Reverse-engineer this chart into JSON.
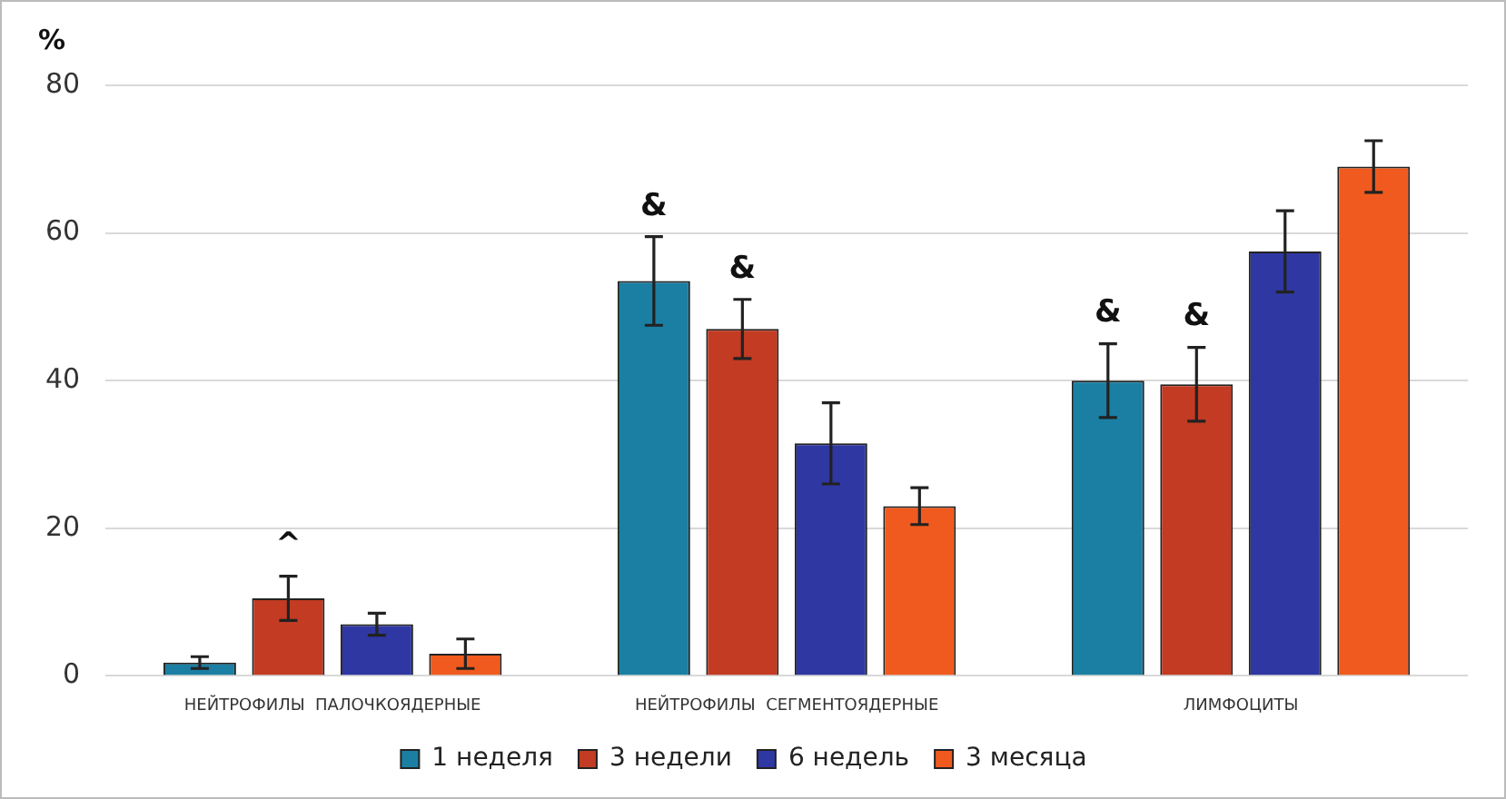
{
  "chart_data": {
    "type": "bar",
    "ylabel": "%",
    "categories": [
      "НЕЙТРОФИЛЫ  ПАЛОЧКОЯДЕРНЫЕ",
      "НЕЙТРОФИЛЫ  СЕГМЕНТОЯДЕРНЫЕ",
      "ЛИМФОЦИТЫ"
    ],
    "series": [
      {
        "name": "1 неделя",
        "color": "#1a7fa3",
        "values": [
          1.8,
          53.5,
          40
        ],
        "errors": [
          0.8,
          6,
          5
        ],
        "value_labels": [
          null,
          "&",
          "&"
        ]
      },
      {
        "name": "3 недели",
        "color": "#c23b22",
        "values": [
          10.5,
          47,
          39.5
        ],
        "errors": [
          3,
          4,
          5
        ],
        "value_labels": [
          "^",
          "&",
          "&"
        ]
      },
      {
        "name": "6 недель",
        "color": "#2f37a2",
        "values": [
          7,
          31.5,
          57.5
        ],
        "errors": [
          1.5,
          5.5,
          5.5
        ]
      },
      {
        "name": "3 месяца",
        "color": "#f05a1e",
        "values": [
          3,
          23,
          69
        ],
        "errors": [
          2,
          2.5,
          3.5
        ]
      }
    ],
    "ylim": [
      0,
      80
    ],
    "yticks": [
      0,
      20,
      40,
      60,
      80
    ],
    "grid": "y",
    "legend": "bottom"
  }
}
